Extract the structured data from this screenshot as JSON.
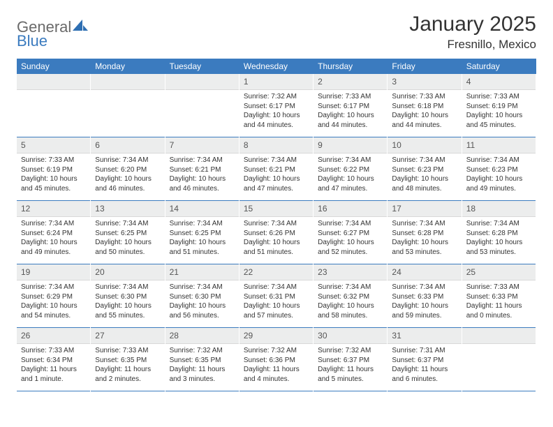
{
  "logo": {
    "word1": "General",
    "word2": "Blue"
  },
  "header": {
    "title": "January 2025",
    "location": "Fresnillo, Mexico"
  },
  "calendar": {
    "header_bg": "#3b7bbf",
    "daynum_bg": "#eceded",
    "divider_color": "#3b7bbf",
    "weekdays": [
      "Sunday",
      "Monday",
      "Tuesday",
      "Wednesday",
      "Thursday",
      "Friday",
      "Saturday"
    ],
    "weeks": [
      [
        {
          "empty": true
        },
        {
          "empty": true
        },
        {
          "empty": true
        },
        {
          "day": "1",
          "sunrise": "Sunrise: 7:32 AM",
          "sunset": "Sunset: 6:17 PM",
          "daylight": "Daylight: 10 hours and 44 minutes."
        },
        {
          "day": "2",
          "sunrise": "Sunrise: 7:33 AM",
          "sunset": "Sunset: 6:17 PM",
          "daylight": "Daylight: 10 hours and 44 minutes."
        },
        {
          "day": "3",
          "sunrise": "Sunrise: 7:33 AM",
          "sunset": "Sunset: 6:18 PM",
          "daylight": "Daylight: 10 hours and 44 minutes."
        },
        {
          "day": "4",
          "sunrise": "Sunrise: 7:33 AM",
          "sunset": "Sunset: 6:19 PM",
          "daylight": "Daylight: 10 hours and 45 minutes."
        }
      ],
      [
        {
          "day": "5",
          "sunrise": "Sunrise: 7:33 AM",
          "sunset": "Sunset: 6:19 PM",
          "daylight": "Daylight: 10 hours and 45 minutes."
        },
        {
          "day": "6",
          "sunrise": "Sunrise: 7:34 AM",
          "sunset": "Sunset: 6:20 PM",
          "daylight": "Daylight: 10 hours and 46 minutes."
        },
        {
          "day": "7",
          "sunrise": "Sunrise: 7:34 AM",
          "sunset": "Sunset: 6:21 PM",
          "daylight": "Daylight: 10 hours and 46 minutes."
        },
        {
          "day": "8",
          "sunrise": "Sunrise: 7:34 AM",
          "sunset": "Sunset: 6:21 PM",
          "daylight": "Daylight: 10 hours and 47 minutes."
        },
        {
          "day": "9",
          "sunrise": "Sunrise: 7:34 AM",
          "sunset": "Sunset: 6:22 PM",
          "daylight": "Daylight: 10 hours and 47 minutes."
        },
        {
          "day": "10",
          "sunrise": "Sunrise: 7:34 AM",
          "sunset": "Sunset: 6:23 PM",
          "daylight": "Daylight: 10 hours and 48 minutes."
        },
        {
          "day": "11",
          "sunrise": "Sunrise: 7:34 AM",
          "sunset": "Sunset: 6:23 PM",
          "daylight": "Daylight: 10 hours and 49 minutes."
        }
      ],
      [
        {
          "day": "12",
          "sunrise": "Sunrise: 7:34 AM",
          "sunset": "Sunset: 6:24 PM",
          "daylight": "Daylight: 10 hours and 49 minutes."
        },
        {
          "day": "13",
          "sunrise": "Sunrise: 7:34 AM",
          "sunset": "Sunset: 6:25 PM",
          "daylight": "Daylight: 10 hours and 50 minutes."
        },
        {
          "day": "14",
          "sunrise": "Sunrise: 7:34 AM",
          "sunset": "Sunset: 6:25 PM",
          "daylight": "Daylight: 10 hours and 51 minutes."
        },
        {
          "day": "15",
          "sunrise": "Sunrise: 7:34 AM",
          "sunset": "Sunset: 6:26 PM",
          "daylight": "Daylight: 10 hours and 51 minutes."
        },
        {
          "day": "16",
          "sunrise": "Sunrise: 7:34 AM",
          "sunset": "Sunset: 6:27 PM",
          "daylight": "Daylight: 10 hours and 52 minutes."
        },
        {
          "day": "17",
          "sunrise": "Sunrise: 7:34 AM",
          "sunset": "Sunset: 6:28 PM",
          "daylight": "Daylight: 10 hours and 53 minutes."
        },
        {
          "day": "18",
          "sunrise": "Sunrise: 7:34 AM",
          "sunset": "Sunset: 6:28 PM",
          "daylight": "Daylight: 10 hours and 53 minutes."
        }
      ],
      [
        {
          "day": "19",
          "sunrise": "Sunrise: 7:34 AM",
          "sunset": "Sunset: 6:29 PM",
          "daylight": "Daylight: 10 hours and 54 minutes."
        },
        {
          "day": "20",
          "sunrise": "Sunrise: 7:34 AM",
          "sunset": "Sunset: 6:30 PM",
          "daylight": "Daylight: 10 hours and 55 minutes."
        },
        {
          "day": "21",
          "sunrise": "Sunrise: 7:34 AM",
          "sunset": "Sunset: 6:30 PM",
          "daylight": "Daylight: 10 hours and 56 minutes."
        },
        {
          "day": "22",
          "sunrise": "Sunrise: 7:34 AM",
          "sunset": "Sunset: 6:31 PM",
          "daylight": "Daylight: 10 hours and 57 minutes."
        },
        {
          "day": "23",
          "sunrise": "Sunrise: 7:34 AM",
          "sunset": "Sunset: 6:32 PM",
          "daylight": "Daylight: 10 hours and 58 minutes."
        },
        {
          "day": "24",
          "sunrise": "Sunrise: 7:34 AM",
          "sunset": "Sunset: 6:33 PM",
          "daylight": "Daylight: 10 hours and 59 minutes."
        },
        {
          "day": "25",
          "sunrise": "Sunrise: 7:33 AM",
          "sunset": "Sunset: 6:33 PM",
          "daylight": "Daylight: 11 hours and 0 minutes."
        }
      ],
      [
        {
          "day": "26",
          "sunrise": "Sunrise: 7:33 AM",
          "sunset": "Sunset: 6:34 PM",
          "daylight": "Daylight: 11 hours and 1 minute."
        },
        {
          "day": "27",
          "sunrise": "Sunrise: 7:33 AM",
          "sunset": "Sunset: 6:35 PM",
          "daylight": "Daylight: 11 hours and 2 minutes."
        },
        {
          "day": "28",
          "sunrise": "Sunrise: 7:32 AM",
          "sunset": "Sunset: 6:35 PM",
          "daylight": "Daylight: 11 hours and 3 minutes."
        },
        {
          "day": "29",
          "sunrise": "Sunrise: 7:32 AM",
          "sunset": "Sunset: 6:36 PM",
          "daylight": "Daylight: 11 hours and 4 minutes."
        },
        {
          "day": "30",
          "sunrise": "Sunrise: 7:32 AM",
          "sunset": "Sunset: 6:37 PM",
          "daylight": "Daylight: 11 hours and 5 minutes."
        },
        {
          "day": "31",
          "sunrise": "Sunrise: 7:31 AM",
          "sunset": "Sunset: 6:37 PM",
          "daylight": "Daylight: 11 hours and 6 minutes."
        },
        {
          "empty": true
        }
      ]
    ]
  }
}
